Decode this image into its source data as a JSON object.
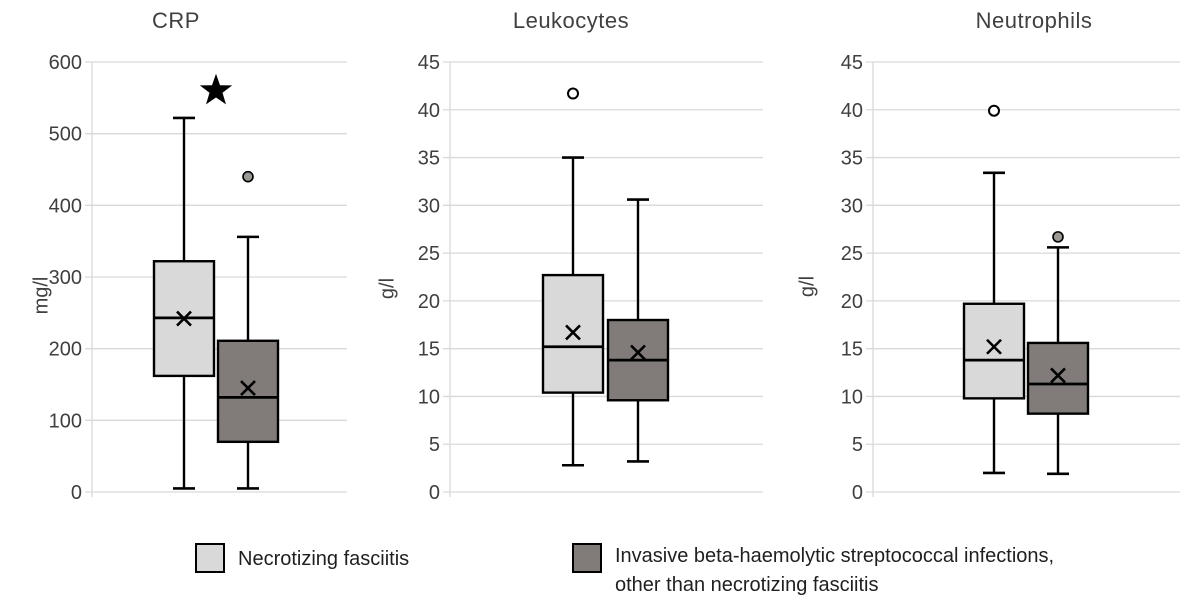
{
  "chart_data": [
    {
      "type": "box",
      "title": "CRP",
      "ylabel": "mg/l",
      "ylim": [
        0,
        600
      ],
      "ytick_step": 100,
      "grid": true,
      "groups": [
        {
          "name": "Necrotizing fasciitis",
          "fill": "#d9d9d9",
          "whisker_low": 5,
          "q1": 162,
          "median": 243,
          "mean": 242,
          "q3": 322,
          "whisker_high": 522,
          "outliers": []
        },
        {
          "name": "Invasive beta-haemolytic streptococcal infections, other than necrotizing fasciitis",
          "fill": "#817c79",
          "whisker_low": 5,
          "q1": 70,
          "median": 132,
          "mean": 145,
          "q3": 211,
          "whisker_high": 356,
          "outliers": [
            {
              "value": 440,
              "style": "filled"
            }
          ]
        }
      ],
      "annotations": [
        {
          "symbol": "star",
          "value": 560,
          "position": "between-groups"
        }
      ]
    },
    {
      "type": "box",
      "title": "Leukocytes",
      "ylabel": "g/l",
      "ylim": [
        0,
        45
      ],
      "ytick_step": 5,
      "grid": true,
      "groups": [
        {
          "name": "Necrotizing fasciitis",
          "fill": "#d9d9d9",
          "whisker_low": 2.8,
          "q1": 10.4,
          "median": 15.2,
          "mean": 16.7,
          "q3": 22.7,
          "whisker_high": 35.0,
          "outliers": [
            {
              "value": 41.7,
              "style": "open"
            }
          ]
        },
        {
          "name": "Invasive beta-haemolytic streptococcal infections, other than necrotizing fasciitis",
          "fill": "#817c79",
          "whisker_low": 3.2,
          "q1": 9.6,
          "median": 13.8,
          "mean": 14.6,
          "q3": 18.0,
          "whisker_high": 30.6,
          "outliers": []
        }
      ],
      "annotations": []
    },
    {
      "type": "box",
      "title": "Neutrophils",
      "ylabel": "g/l",
      "ylim": [
        0,
        45
      ],
      "ytick_step": 5,
      "grid": true,
      "groups": [
        {
          "name": "Necrotizing fasciitis",
          "fill": "#d9d9d9",
          "whisker_low": 2.0,
          "q1": 9.8,
          "median": 13.8,
          "mean": 15.2,
          "q3": 19.7,
          "whisker_high": 33.4,
          "outliers": [
            {
              "value": 39.9,
              "style": "open"
            }
          ]
        },
        {
          "name": "Invasive beta-haemolytic streptococcal infections, other than necrotizing fasciitis",
          "fill": "#817c79",
          "whisker_low": 1.9,
          "q1": 8.2,
          "median": 11.3,
          "mean": 12.2,
          "q3": 15.6,
          "whisker_high": 25.6,
          "outliers": [
            {
              "value": 26.7,
              "style": "filled"
            }
          ]
        }
      ],
      "annotations": []
    }
  ],
  "legend": {
    "items": [
      {
        "label": "Necrotizing fasciitis",
        "color": "#d9d9d9"
      },
      {
        "label": "Invasive beta-haemolytic streptococcal infections, other than necrotizing fasciitis",
        "color": "#817c79"
      }
    ]
  },
  "styles": {
    "box_stroke": "#000000",
    "grid_color": "#d9d9d9",
    "axis_color": "#d9d9d9",
    "tick_text_color": "#3f3f3f",
    "outlier_fill": "#9c9894",
    "background": "#ffffff"
  }
}
